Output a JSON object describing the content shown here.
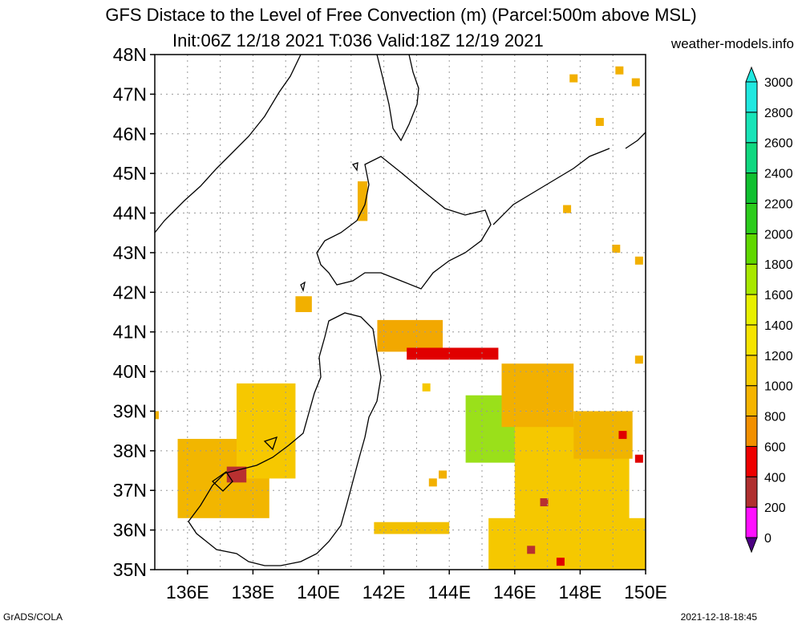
{
  "header": {
    "title_line1": "GFS Distace to the Level of Free Convection (m) (Parcel:500m above MSL)",
    "title_line2": "Init:06Z 12/18 2021 T:036 Valid:18Z 12/19 2021",
    "site": "weather-models.info"
  },
  "footer": {
    "left": "GrADS/COLA",
    "right": "2021-12-18-18:45"
  },
  "map": {
    "lon_range": [
      135,
      150
    ],
    "lat_range": [
      35,
      48
    ],
    "lat_labels": [
      "35N",
      "36N",
      "37N",
      "38N",
      "39N",
      "40N",
      "41N",
      "42N",
      "43N",
      "44N",
      "45N",
      "46N",
      "47N",
      "48N"
    ],
    "lon_labels": [
      "136E",
      "138E",
      "140E",
      "142E",
      "144E",
      "146E",
      "148E",
      "150E"
    ],
    "field_patches": [
      {
        "name": "sea-of-japan-west",
        "lon": [
          135.7,
          138.5
        ],
        "lat": [
          36.3,
          38.3
        ],
        "color": "#f2b600"
      },
      {
        "name": "sea-of-japan-center",
        "lon": [
          137.5,
          139.3
        ],
        "lat": [
          37.3,
          39.7
        ],
        "color": "#f6c800"
      },
      {
        "name": "noto-red",
        "lon": [
          137.2,
          137.8
        ],
        "lat": [
          37.2,
          37.6
        ],
        "color": "#b83030"
      },
      {
        "name": "tsugaru-east",
        "lon": [
          141.8,
          143.8
        ],
        "lat": [
          40.5,
          41.3
        ],
        "color": "#f2a800"
      },
      {
        "name": "tsugaru-red",
        "lon": [
          142.7,
          145.5
        ],
        "lat": [
          40.3,
          40.6
        ],
        "color": "#e00000"
      },
      {
        "name": "pacific-green",
        "lon": [
          144.5,
          146.1
        ],
        "lat": [
          37.7,
          39.4
        ],
        "color": "#9ae01a"
      },
      {
        "name": "pacific-yellow",
        "lon": [
          146.0,
          149.5
        ],
        "lat": [
          35.3,
          38.8
        ],
        "color": "#f5c800"
      },
      {
        "name": "pacific-orange-north",
        "lon": [
          145.6,
          147.8
        ],
        "lat": [
          38.6,
          40.2
        ],
        "color": "#f2b000"
      },
      {
        "name": "east-band",
        "lon": [
          147.8,
          149.6
        ],
        "lat": [
          37.8,
          39.0
        ],
        "color": "#f0b400"
      },
      {
        "name": "south-strip",
        "lon": [
          141.7,
          144.0
        ],
        "lat": [
          35.9,
          36.2
        ],
        "color": "#f2c000"
      },
      {
        "name": "southeast-strip",
        "lon": [
          145.2,
          150.0
        ],
        "lat": [
          35.0,
          36.3
        ],
        "color": "#f5c800"
      },
      {
        "name": "hokkaido-west-dot",
        "lon": [
          141.2,
          141.5
        ],
        "lat": [
          43.8,
          44.8
        ],
        "color": "#f2b000"
      },
      {
        "name": "nw-dot",
        "lon": [
          139.3,
          139.8
        ],
        "lat": [
          41.5,
          41.9
        ],
        "color": "#f2b000"
      }
    ],
    "dots": [
      {
        "lon": 147.8,
        "lat": 47.4,
        "color": "#f2b000"
      },
      {
        "lon": 149.2,
        "lat": 47.6,
        "color": "#f2b000"
      },
      {
        "lon": 149.7,
        "lat": 47.3,
        "color": "#f2b000"
      },
      {
        "lon": 148.6,
        "lat": 46.3,
        "color": "#f2b000"
      },
      {
        "lon": 149.1,
        "lat": 43.1,
        "color": "#f2b000"
      },
      {
        "lon": 149.8,
        "lat": 42.8,
        "color": "#f2b000"
      },
      {
        "lon": 149.8,
        "lat": 40.3,
        "color": "#f2b000"
      },
      {
        "lon": 147.6,
        "lat": 44.1,
        "color": "#f2b000"
      },
      {
        "lon": 135.0,
        "lat": 38.9,
        "color": "#f2b000"
      },
      {
        "lon": 143.3,
        "lat": 39.6,
        "color": "#f6c800"
      },
      {
        "lon": 143.8,
        "lat": 37.4,
        "color": "#f2b000"
      },
      {
        "lon": 143.5,
        "lat": 37.2,
        "color": "#f2b000"
      },
      {
        "lon": 149.8,
        "lat": 37.8,
        "color": "#e00000"
      },
      {
        "lon": 149.3,
        "lat": 38.4,
        "color": "#e00000"
      },
      {
        "lon": 147.4,
        "lat": 35.2,
        "color": "#e00000"
      },
      {
        "lon": 146.5,
        "lat": 35.5,
        "color": "#b83030"
      },
      {
        "lon": 146.9,
        "lat": 36.7,
        "color": "#b83030"
      }
    ]
  },
  "colorbar": {
    "labels": [
      "0",
      "200",
      "400",
      "600",
      "800",
      "1000",
      "1200",
      "1400",
      "1600",
      "1800",
      "2000",
      "2200",
      "2400",
      "2600",
      "2800",
      "3000"
    ],
    "colors": [
      "#4b0082",
      "#ff10ff",
      "#b03030",
      "#ee0000",
      "#f29000",
      "#f5b400",
      "#f6cc00",
      "#f6e400",
      "#e8f000",
      "#a8e800",
      "#60d800",
      "#2ccc1c",
      "#10c030",
      "#10d880",
      "#18e4b8",
      "#20e8e0"
    ]
  }
}
